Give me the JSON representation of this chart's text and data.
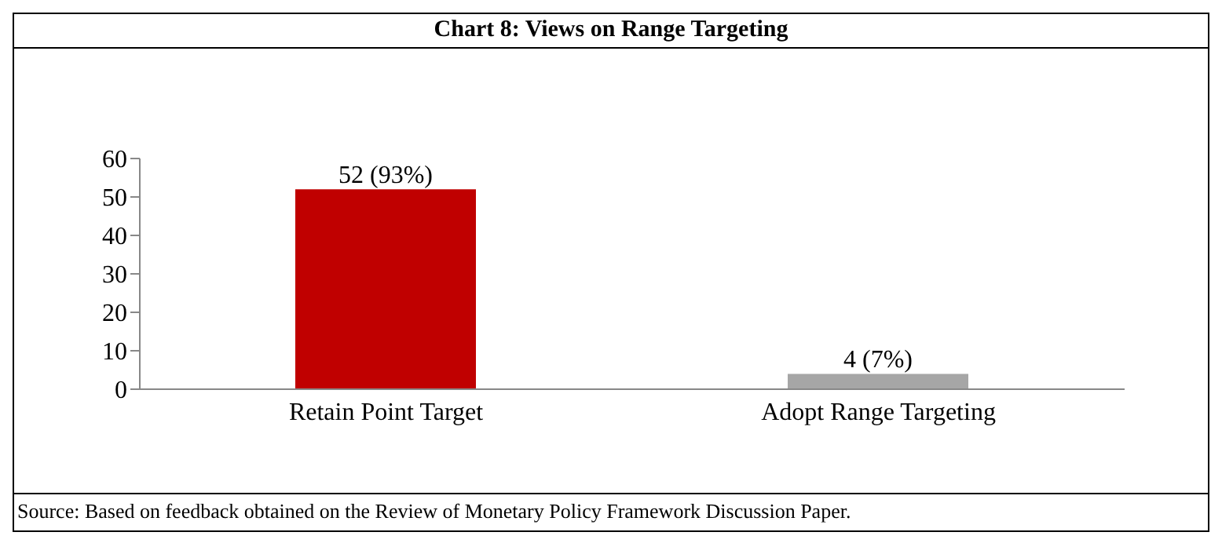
{
  "chart_data": {
    "type": "bar",
    "title": "Chart 8: Views on Range Targeting",
    "categories": [
      "Retain Point Target",
      "Adopt Range Targeting"
    ],
    "values": [
      52,
      4
    ],
    "colors": [
      "#c00000",
      "#a6a6a6"
    ],
    "value_labels": [
      "52 (93%)",
      "4 (7%)"
    ],
    "ylim": [
      0,
      60
    ],
    "yticks": [
      0,
      10,
      20,
      30,
      40,
      50,
      60
    ],
    "grid": false,
    "legend": false,
    "annotations": [
      "Source: Based on feedback obtained on the Review of Monetary Policy Framework Discussion Paper."
    ]
  }
}
